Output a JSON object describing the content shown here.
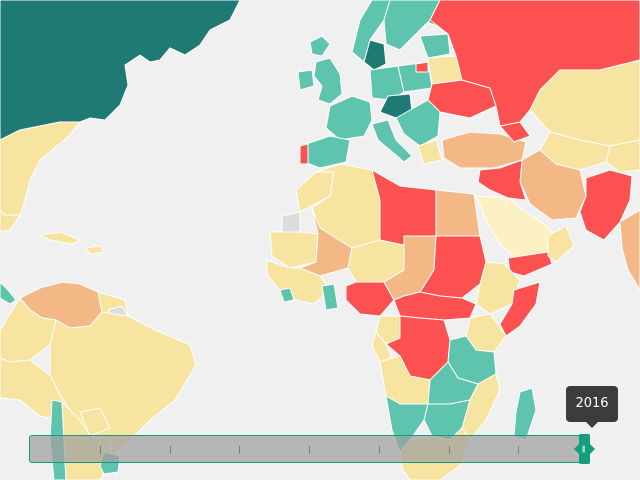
{
  "map": {
    "colors": {
      "ocean": "#f0f0f0",
      "dark_teal": "#1e7a72",
      "teal": "#5ec4ae",
      "pale_yellow": "#f6e4a0",
      "orange": "#f4b887",
      "red": "#fb5150",
      "grey": "#dddddd"
    }
  },
  "timeline": {
    "year_label": "2016",
    "tick_count": 7,
    "position_fraction": 1.0,
    "track_color": "#a0a0a0",
    "accent": "#169c7e"
  },
  "icons": {
    "handle": "drag-handle-icon"
  }
}
